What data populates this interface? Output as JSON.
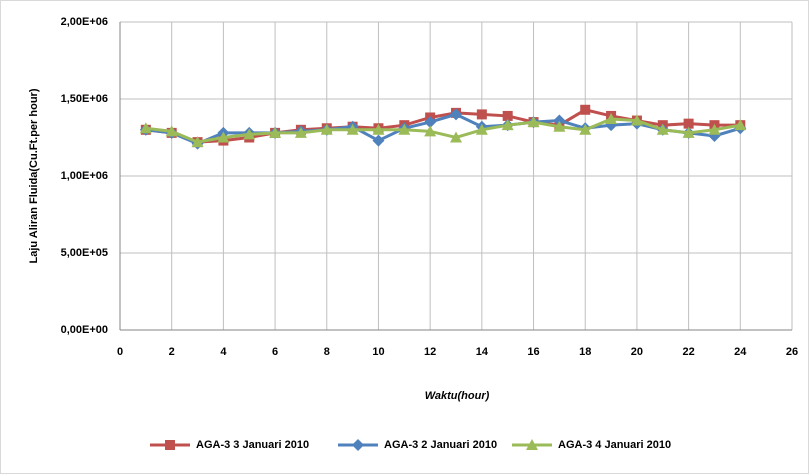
{
  "chart_data": {
    "type": "line",
    "x_label": "Waktu(hour)",
    "y_label": "Laju Aliran Fluida(Cu.Ft.per hour)",
    "x": [
      1,
      2,
      3,
      4,
      5,
      6,
      7,
      8,
      9,
      10,
      11,
      12,
      13,
      14,
      15,
      16,
      17,
      18,
      19,
      20,
      21,
      22,
      23,
      24
    ],
    "series": [
      {
        "name": "AGA-3 3 Januari 2010",
        "color": "#c0504d",
        "marker": "square",
        "values": [
          1300000,
          1280000,
          1220000,
          1230000,
          1250000,
          1280000,
          1300000,
          1310000,
          1320000,
          1310000,
          1330000,
          1380000,
          1410000,
          1400000,
          1390000,
          1350000,
          1330000,
          1430000,
          1390000,
          1360000,
          1330000,
          1340000,
          1330000,
          1330000
        ]
      },
      {
        "name": "AGA-3 2 Januari 2010",
        "color": "#4f81bd",
        "marker": "diamond",
        "values": [
          1300000,
          1280000,
          1210000,
          1280000,
          1280000,
          1280000,
          1290000,
          1300000,
          1320000,
          1230000,
          1310000,
          1350000,
          1400000,
          1320000,
          1330000,
          1350000,
          1360000,
          1310000,
          1330000,
          1340000,
          1300000,
          1280000,
          1260000,
          1310000
        ]
      },
      {
        "name": "AGA-3 4 Januari 2010",
        "color": "#9bbb59",
        "marker": "triangle",
        "values": [
          1310000,
          1290000,
          1220000,
          1250000,
          1270000,
          1280000,
          1280000,
          1300000,
          1300000,
          1300000,
          1300000,
          1290000,
          1250000,
          1300000,
          1330000,
          1350000,
          1320000,
          1300000,
          1370000,
          1360000,
          1300000,
          1280000,
          1300000,
          1330000
        ]
      }
    ],
    "xlim": [
      0,
      26
    ],
    "xticks": [
      0,
      2,
      4,
      6,
      8,
      10,
      12,
      14,
      16,
      18,
      20,
      22,
      24,
      26
    ],
    "ylim": [
      0,
      2000000
    ],
    "yticks": [
      {
        "value": 0,
        "label": "0,00E+00"
      },
      {
        "value": 500000,
        "label": "5,00E+05"
      },
      {
        "value": 1000000,
        "label": "1,00E+06"
      },
      {
        "value": 1500000,
        "label": "1,50E+06"
      },
      {
        "value": 2000000,
        "label": "2,00E+06"
      }
    ],
    "grid": true,
    "legend": "bottom"
  }
}
